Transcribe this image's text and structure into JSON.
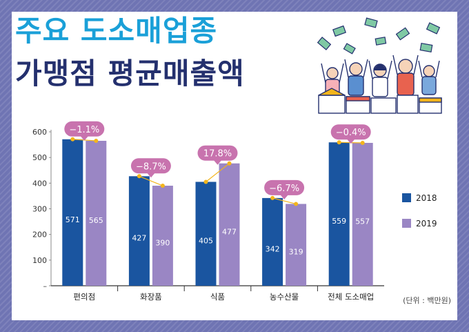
{
  "header": {
    "title_line1": "주요 도소매업종",
    "title_line2": "가맹점 평균매출액"
  },
  "unit_note": "(단위 : 백만원)",
  "colors": {
    "series_2018": "#1a55a0",
    "series_2019": "#9a86c4",
    "change_badge": "#c873ae",
    "trend_line": "#f3b51c",
    "title_line1": "#1aa0d8",
    "title_line2": "#24306e"
  },
  "chart_data": {
    "type": "bar",
    "categories": [
      "편의점",
      "화장품",
      "식품",
      "농수산물",
      "전체 도소매업"
    ],
    "series": [
      {
        "name": "2018",
        "values": [
          571,
          427,
          405,
          342,
          559
        ]
      },
      {
        "name": "2019",
        "values": [
          565,
          390,
          477,
          319,
          557
        ]
      }
    ],
    "changes": [
      "−1.1%",
      "−8.7%",
      "17.8%",
      "−6.7%",
      "−0.4%"
    ],
    "yticks": [
      "–",
      "100",
      "200",
      "300",
      "400",
      "500",
      "600"
    ],
    "ylim": [
      0,
      600
    ],
    "legend_position": "right",
    "grid": false
  }
}
